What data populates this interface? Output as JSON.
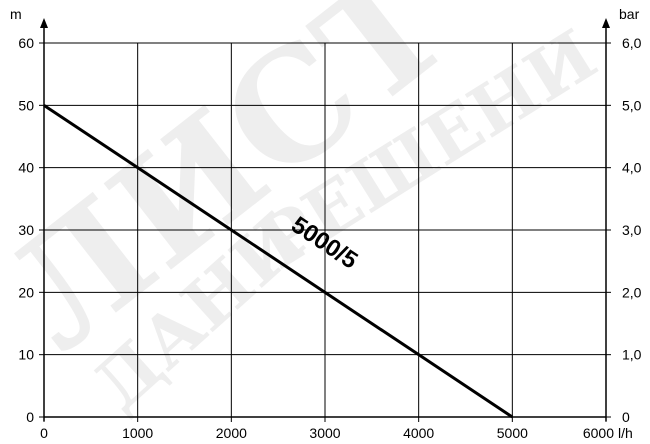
{
  "chart_data": {
    "type": "line",
    "x_unit": "l/h",
    "y_left_unit": "m",
    "y_right_unit": "bar",
    "xlim": [
      0,
      6000
    ],
    "ylim": [
      0,
      60
    ],
    "y2lim": [
      0,
      6
    ],
    "grid": true,
    "x_ticks": [
      "0",
      "1000",
      "2000",
      "3000",
      "4000",
      "5000",
      "6000"
    ],
    "y_left_ticks": [
      "0",
      "10",
      "20",
      "30",
      "40",
      "50",
      "60"
    ],
    "y_right_ticks": [
      "0",
      "1,0",
      "2,0",
      "3,0",
      "4,0",
      "5,0",
      "6,0"
    ],
    "series": [
      {
        "name": "5000/5",
        "x": [
          0,
          1000,
          2000,
          3000,
          4000,
          5000
        ],
        "y": [
          50,
          40,
          30,
          20,
          10,
          0
        ]
      }
    ]
  },
  "watermark": {
    "text_top": "ЛИСТ",
    "text_arc": "РЕШЕНИ",
    "text_bottom": "ДАНИ"
  }
}
